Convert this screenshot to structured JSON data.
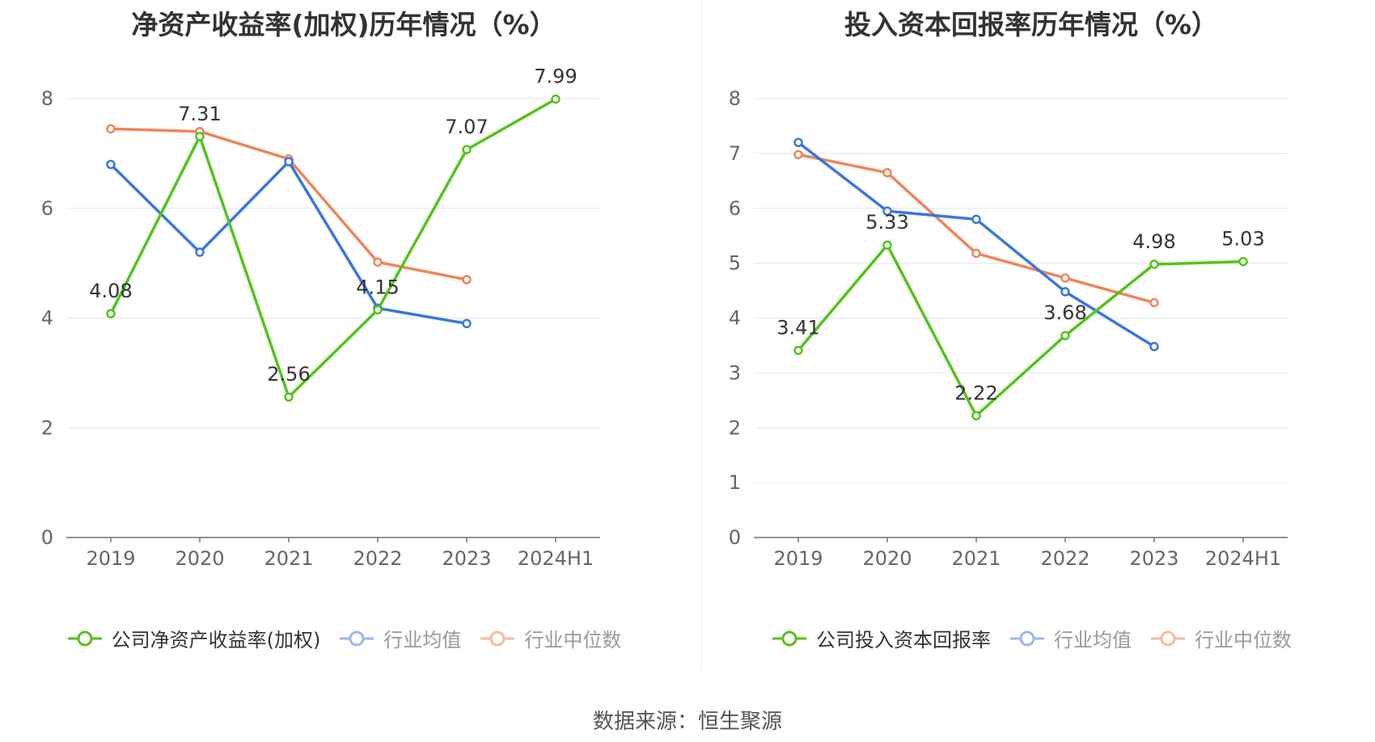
{
  "chart_data": [
    {
      "type": "line",
      "title": "净资产收益率(加权)历年情况（%）",
      "categories": [
        "2019",
        "2020",
        "2021",
        "2022",
        "2023",
        "2024H1"
      ],
      "ylim": [
        0,
        8
      ],
      "yticks": [
        0,
        2,
        4,
        6,
        8
      ],
      "grid": true,
      "legend_position": "bottom",
      "series": [
        {
          "name": "公司净资产收益率(加权)",
          "color": "#52c41a",
          "values": [
            4.08,
            7.31,
            2.56,
            4.15,
            7.07,
            7.99
          ],
          "labels": [
            "4.08",
            "7.31",
            "2.56",
            "4.15",
            "7.07",
            "7.99"
          ]
        },
        {
          "name": "行业均值",
          "color": "#3a76e0",
          "values": [
            6.8,
            5.2,
            6.85,
            4.18,
            3.9,
            null
          ]
        },
        {
          "name": "行业中位数",
          "color": "#f0845a",
          "values": [
            7.45,
            7.4,
            6.9,
            5.02,
            4.7,
            null
          ]
        }
      ]
    },
    {
      "type": "line",
      "title": "投入资本回报率历年情况（%）",
      "categories": [
        "2019",
        "2020",
        "2021",
        "2022",
        "2023",
        "2024H1"
      ],
      "ylim": [
        0,
        8
      ],
      "yticks": [
        0,
        1,
        2,
        3,
        4,
        5,
        6,
        7,
        8
      ],
      "grid": true,
      "legend_position": "bottom",
      "series": [
        {
          "name": "公司投入资本回报率",
          "color": "#52c41a",
          "values": [
            3.41,
            5.33,
            2.22,
            3.68,
            4.98,
            5.03
          ],
          "labels": [
            "3.41",
            "5.33",
            "2.22",
            "3.68",
            "4.98",
            "5.03"
          ]
        },
        {
          "name": "行业均值",
          "color": "#3a76e0",
          "values": [
            7.2,
            5.95,
            5.8,
            4.48,
            3.48,
            null
          ]
        },
        {
          "name": "行业中位数",
          "color": "#f0845a",
          "values": [
            6.98,
            6.65,
            5.18,
            4.73,
            4.28,
            null
          ]
        }
      ]
    }
  ],
  "source": "数据来源：恒生聚源"
}
